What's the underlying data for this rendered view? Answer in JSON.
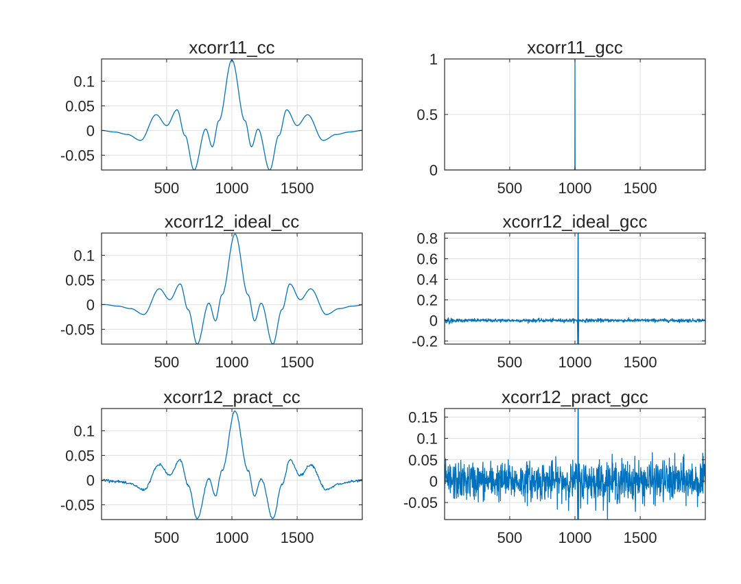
{
  "figure": {
    "background": "#ffffff",
    "line_color": "#0072BD"
  },
  "chart_data": [
    {
      "type": "line",
      "title": "xcorr11_cc",
      "signal": "cc",
      "shift": 0,
      "scale": 0.143,
      "noise": 0,
      "xlim": [
        1,
        1999
      ],
      "ylim": [
        -0.08,
        0.145
      ],
      "xticks": [
        500,
        1000,
        1500
      ],
      "xticklabels": [
        "500",
        "1000",
        "1500"
      ],
      "yticks": [
        -0.05,
        0,
        0.05,
        0.1
      ],
      "yticklabels": [
        "-0.05",
        "0",
        "0.05",
        "0.1"
      ],
      "x": [
        1,
        100,
        200,
        300,
        420,
        500,
        580,
        640,
        710,
        800,
        850,
        900,
        1000,
        1100,
        1150,
        1200,
        1290,
        1360,
        1420,
        1500,
        1580,
        1700,
        1800,
        1900,
        1999
      ],
      "y": [
        0,
        -0.003,
        -0.008,
        -0.02,
        0.032,
        0.01,
        0.042,
        -0.01,
        -0.08,
        0.003,
        -0.033,
        0.02,
        0.143,
        0.02,
        -0.033,
        0.003,
        -0.08,
        -0.01,
        0.042,
        0.01,
        0.032,
        -0.02,
        -0.008,
        -0.003,
        0
      ]
    },
    {
      "type": "line",
      "title": "xcorr11_gcc",
      "signal": "gcc",
      "shift": 0,
      "scale": 1.0,
      "noise": 0,
      "xlim": [
        1,
        1999
      ],
      "ylim": [
        0,
        1
      ],
      "xticks": [
        500,
        1000,
        1500
      ],
      "xticklabels": [
        "500",
        "1000",
        "1500"
      ],
      "yticks": [
        0,
        0.5,
        1
      ],
      "yticklabels": [
        "0",
        "0.5",
        "1"
      ],
      "x": [
        1,
        999,
        1000,
        1001,
        1999
      ],
      "y": [
        0,
        0,
        1,
        0,
        0
      ]
    },
    {
      "type": "line",
      "title": "xcorr12_ideal_cc",
      "signal": "cc",
      "shift": 24,
      "scale": 0.143,
      "noise": 0,
      "xlim": [
        1,
        1999
      ],
      "ylim": [
        -0.08,
        0.145
      ],
      "xticks": [
        500,
        1000,
        1500
      ],
      "xticklabels": [
        "500",
        "1000",
        "1500"
      ],
      "yticks": [
        -0.05,
        0,
        0.05,
        0.1
      ],
      "yticklabels": [
        "-0.05",
        "0",
        "0.05",
        "0.1"
      ],
      "peak": {
        "x": 1024,
        "y": 0.143
      }
    },
    {
      "type": "line",
      "title": "xcorr12_ideal_gcc",
      "signal": "gcc",
      "shift": 24,
      "scale": 0.85,
      "noise": 0.008,
      "xlim": [
        1,
        1999
      ],
      "ylim": [
        -0.23,
        0.85
      ],
      "xticks": [
        500,
        1000,
        1500
      ],
      "xticklabels": [
        "500",
        "1000",
        "1500"
      ],
      "yticks": [
        -0.2,
        0,
        0.2,
        0.4,
        0.6,
        0.8
      ],
      "yticklabels": [
        "-0.2",
        "0",
        "0.2",
        "0.4",
        "0.6",
        "0.8"
      ],
      "peak": {
        "x": 1024,
        "y": 0.85
      }
    },
    {
      "type": "line",
      "title": "xcorr12_pract_cc",
      "signal": "cc",
      "shift": 24,
      "scale": 0.14,
      "noise": 0.0012,
      "xlim": [
        1,
        1999
      ],
      "ylim": [
        -0.08,
        0.145
      ],
      "xticks": [
        500,
        1000,
        1500
      ],
      "xticklabels": [
        "500",
        "1000",
        "1500"
      ],
      "yticks": [
        -0.05,
        0,
        0.05,
        0.1
      ],
      "yticklabels": [
        "-0.05",
        "0",
        "0.05",
        "0.1"
      ],
      "peak": {
        "x": 1024,
        "y": 0.14
      }
    },
    {
      "type": "line",
      "title": "xcorr12_pract_gcc",
      "signal": "noise",
      "shift": 24,
      "scale": 0.17,
      "noise": 0.022,
      "xlim": [
        1,
        1999
      ],
      "ylim": [
        -0.09,
        0.17
      ],
      "xticks": [
        500,
        1000,
        1500
      ],
      "xticklabels": [
        "500",
        "1000",
        "1500"
      ],
      "yticks": [
        -0.05,
        0,
        0.05,
        0.1,
        0.15
      ],
      "yticklabels": [
        "-0.05",
        "0",
        "0.05",
        "0.1",
        "0.15"
      ],
      "peak": {
        "x": 1024,
        "y": 0.17
      }
    }
  ]
}
